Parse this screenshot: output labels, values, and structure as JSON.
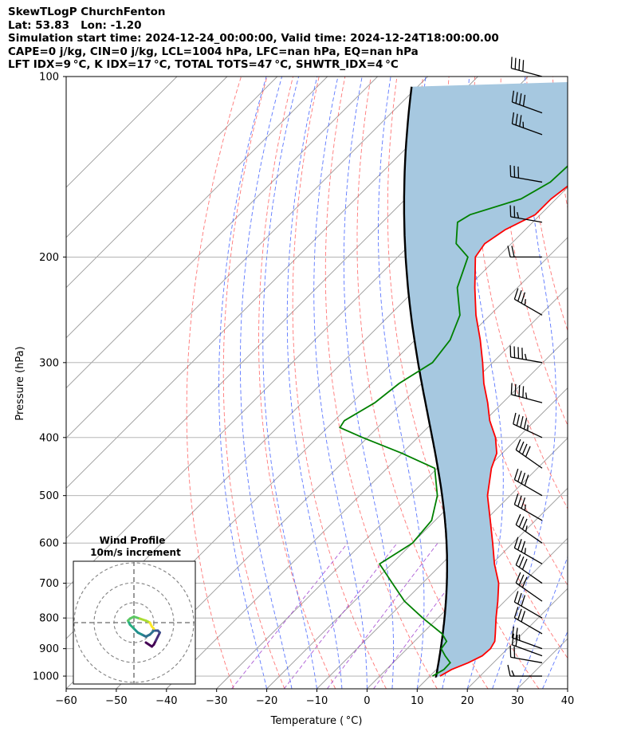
{
  "header": {
    "line1": "SkewTLogP ChurchFenton",
    "line2": "Lat: 53.83   Lon: -1.20",
    "line3": "Simulation start time: 2024-12-24_00:00:00, Valid time: 2024-12-24T18:00:00.00",
    "line4": "CAPE=0 j/kg, CIN=0 j/kg, LCL=1004 hPa, LFC=nan hPa, EQ=nan hPa",
    "line5": "LFT IDX=9 °C, K IDX=17 °C, TOTAL TOTS=47 °C, SHWTR_IDX=4 °C"
  },
  "chart_data": {
    "type": "line",
    "subtype": "skew-T log-P diagram",
    "xlabel": "Temperature ($^\\circ$C)",
    "xlabel_display": "Temperature ( °C)",
    "ylabel": "Pressure (hPa)",
    "xlim": [
      -60,
      40
    ],
    "ylim": [
      1050,
      100
    ],
    "y_scale": "log",
    "x_ticks": [
      -60,
      -50,
      -40,
      -30,
      -20,
      -10,
      0,
      10,
      20,
      30,
      40
    ],
    "x_tick_labels": [
      "−60",
      "−50",
      "−40",
      "−30",
      "−20",
      "−10",
      "0",
      "10",
      "20",
      "30",
      "40"
    ],
    "y_ticks": [
      1000,
      900,
      800,
      700,
      600,
      500,
      400,
      300,
      200,
      100
    ],
    "y_tick_labels": [
      "1000",
      "900",
      "800",
      "700",
      "600",
      "500",
      "400",
      "300",
      "200",
      "100"
    ],
    "grid": true,
    "series": [
      {
        "role": "temperature",
        "color": "#ff0000",
        "pressure": [
          1000,
          975,
          950,
          925,
          900,
          875,
          850,
          800,
          750,
          700,
          650,
          600,
          550,
          500,
          450,
          425,
          400,
          375,
          350,
          325,
          300,
          275,
          250,
          225,
          200,
          190,
          180,
          170,
          160,
          150,
          140,
          130,
          120,
          110,
          100
        ],
        "temp": [
          12,
          13.0,
          15.0,
          16.4,
          16.6,
          16.0,
          14.6,
          11.6,
          8.6,
          5.2,
          0.5,
          -4.0,
          -9.0,
          -14.5,
          -19.2,
          -21.1,
          -24.5,
          -29.0,
          -33.0,
          -37.6,
          -42.0,
          -47.0,
          -52.8,
          -58.5,
          -64.5,
          -65.3,
          -64.0,
          -61.0,
          -61.0,
          -60.0,
          -59.0,
          -56.0,
          -51.0,
          -47.0,
          -44.0
        ]
      },
      {
        "role": "dewpoint",
        "color": "#008000",
        "pressure": [
          1000,
          975,
          950,
          925,
          900,
          875,
          850,
          800,
          750,
          700,
          650,
          600,
          550,
          500,
          450,
          425,
          400,
          385,
          375,
          350,
          325,
          300,
          275,
          250,
          225,
          200,
          190,
          175,
          170,
          160,
          150,
          140,
          130,
          120,
          110,
          100
        ],
        "temp": [
          10.5,
          11.5,
          11.4,
          9.0,
          6.8,
          6.4,
          4.0,
          -3.0,
          -10.0,
          -16.0,
          -22.4,
          -20.0,
          -20.7,
          -24.5,
          -30.5,
          -40.0,
          -51.0,
          -57.5,
          -58.0,
          -55.5,
          -54.5,
          -52.0,
          -53.0,
          -56.0,
          -62.0,
          -66.0,
          -71.0,
          -75.0,
          -74.0,
          -67.0,
          -64.5,
          -64.2,
          -62.4,
          -58.5,
          -56.0,
          -52.4
        ]
      },
      {
        "role": "parcel profile",
        "color": "#000000",
        "start_pressure_hPa": 1005,
        "start_temp_C": 11.5,
        "lcl_pressure_hPa": 1004
      }
    ],
    "shaded_region": {
      "between": [
        "temperature",
        "parcel profile"
      ],
      "color": "#a6c8e0"
    },
    "background_lines": {
      "isotherms": {
        "color": "#999999"
      },
      "dry_adiabats": {
        "color": "#ff5555",
        "style": "dashed"
      },
      "moist_adiabats": {
        "color": "#3355ff",
        "style": "dashed"
      },
      "mixing_ratio": {
        "color": "#9933cc",
        "style": "dashed"
      }
    },
    "wind_barbs": {
      "pressure": [
        1000,
        950,
        925,
        900,
        850,
        800,
        750,
        700,
        650,
        600,
        550,
        500,
        450,
        400,
        350,
        300,
        250,
        200,
        175,
        150,
        125,
        115,
        100
      ],
      "speed_kt": [
        15,
        20,
        20,
        25,
        30,
        30,
        30,
        30,
        35,
        35,
        35,
        40,
        40,
        45,
        45,
        45,
        35,
        20,
        25,
        30,
        35,
        40,
        40
      ],
      "direction_deg": [
        270,
        280,
        290,
        290,
        300,
        300,
        305,
        305,
        300,
        305,
        300,
        300,
        305,
        295,
        285,
        280,
        300,
        270,
        280,
        280,
        290,
        290,
        285
      ]
    },
    "hodograph": {
      "title_line1": "Wind Profile",
      "title_line2": "10m/s increment",
      "rings_ms": [
        10,
        20,
        30
      ],
      "u": [
        6,
        9,
        10,
        11,
        12,
        13,
        12,
        10,
        8,
        6,
        4,
        2,
        0,
        -2,
        -3,
        -2,
        0,
        3,
        6,
        8,
        9,
        10
      ],
      "v": [
        -10,
        -12,
        -11,
        -9,
        -7,
        -5,
        -4,
        -4,
        -6,
        -7,
        -6,
        -5,
        -3,
        -1,
        1,
        2,
        3,
        2,
        1,
        0,
        -2,
        -3
      ],
      "colormap": "viridis"
    }
  }
}
